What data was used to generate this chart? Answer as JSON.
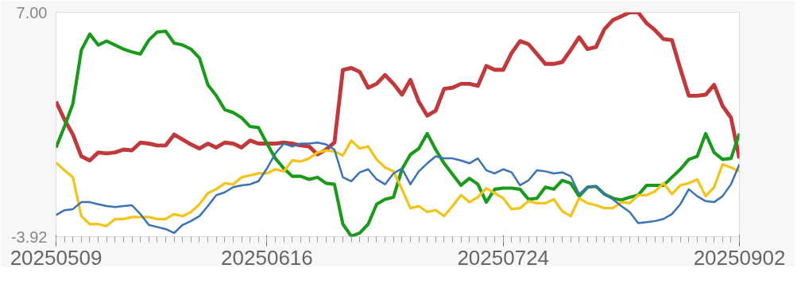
{
  "chart_data": {
    "type": "line",
    "categories": [
      "20250509",
      null,
      null,
      null,
      null,
      null,
      null,
      null,
      null,
      null,
      null,
      null,
      null,
      null,
      null,
      null,
      null,
      null,
      null,
      null,
      null,
      null,
      null,
      null,
      null,
      "20250616",
      null,
      null,
      null,
      null,
      null,
      null,
      null,
      null,
      null,
      null,
      null,
      null,
      null,
      null,
      null,
      null,
      null,
      null,
      null,
      null,
      null,
      null,
      null,
      null,
      null,
      null,
      null,
      "20250724",
      null,
      null,
      null,
      null,
      null,
      null,
      null,
      null,
      null,
      null,
      null,
      null,
      null,
      null,
      null,
      null,
      null,
      null,
      null,
      null,
      null,
      null,
      null,
      null,
      null,
      null,
      null,
      "20250902"
    ],
    "ylim": [
      -3.92,
      7.0
    ],
    "yticks": [
      {
        "value": 7.0,
        "label": "7.00"
      },
      {
        "value": -3.92,
        "label": "-3.92"
      }
    ],
    "series": [
      {
        "color": "#c0393b",
        "values": [
          2.65,
          1.78,
          1.05,
          -0.01,
          -0.21,
          0.18,
          0.13,
          0.18,
          0.32,
          0.28,
          0.66,
          0.61,
          0.52,
          0.52,
          1.05,
          0.81,
          0.57,
          0.37,
          0.61,
          0.42,
          0.66,
          0.61,
          0.42,
          0.76,
          0.61,
          0.61,
          0.61,
          0.66,
          0.61,
          0.52,
          0.47,
          0.08,
          0.32,
          0.66,
          4.2,
          4.29,
          4.1,
          3.33,
          3.52,
          3.95,
          3.52,
          2.99,
          3.71,
          2.65,
          1.97,
          2.21,
          3.28,
          3.33,
          3.52,
          3.52,
          3.42,
          4.39,
          4.2,
          4.2,
          5.02,
          5.6,
          5.45,
          4.97,
          4.49,
          4.49,
          4.58,
          5.16,
          5.79,
          5.21,
          5.31,
          6.18,
          6.62,
          6.81,
          7.0,
          7.0,
          6.47,
          6.13,
          5.7,
          5.65,
          4.25,
          2.94,
          2.94,
          2.99,
          3.47,
          2.45,
          1.87,
          -0.11
        ]
      },
      {
        "color": "#1a9a1a",
        "values": [
          0.42,
          1.44,
          2.55,
          5.16,
          5.94,
          5.41,
          5.6,
          5.41,
          5.21,
          5.07,
          4.97,
          5.65,
          6.04,
          6.08,
          5.5,
          5.41,
          5.21,
          4.78,
          3.47,
          2.94,
          2.26,
          2.12,
          1.87,
          1.44,
          1.39,
          0.61,
          -0.11,
          -0.6,
          -0.98,
          -0.98,
          -1.13,
          -1.03,
          -1.32,
          -1.37,
          -3.31,
          -3.9,
          -3.74,
          -3.31,
          -2.34,
          -2.1,
          -2.0,
          -0.64,
          0.08,
          0.37,
          1.1,
          0.32,
          -0.35,
          -0.89,
          -1.42,
          -1.08,
          -1.37,
          -2.24,
          -1.61,
          -1.56,
          -1.56,
          -1.61,
          -2.1,
          -2.05,
          -1.51,
          -1.61,
          -1.18,
          -1.32,
          -1.95,
          -1.51,
          -1.47,
          -1.85,
          -2.05,
          -2.14,
          -2.0,
          -1.9,
          -1.42,
          -1.42,
          -1.42,
          -1.03,
          -0.64,
          -0.16,
          -0.01,
          1.1,
          0.18,
          -0.16,
          -0.11,
          1.1
        ]
      },
      {
        "color": "#f2c41c",
        "values": [
          -0.31,
          -0.69,
          -1.03,
          -2.92,
          -3.31,
          -3.31,
          -3.4,
          -3.06,
          -3.06,
          -2.97,
          -2.97,
          -2.97,
          -3.06,
          -3.06,
          -2.82,
          -2.92,
          -2.72,
          -2.34,
          -1.8,
          -1.61,
          -1.32,
          -1.37,
          -1.03,
          -0.93,
          -0.84,
          -0.84,
          -0.64,
          -0.74,
          -0.21,
          -0.26,
          -0.11,
          0.18,
          0.28,
          0.23,
          0.03,
          0.76,
          0.37,
          0.47,
          -0.16,
          -0.55,
          -0.74,
          -1.61,
          -2.53,
          -2.43,
          -2.72,
          -2.63,
          -2.92,
          -2.43,
          -1.9,
          -2.24,
          -2.0,
          -1.56,
          -1.8,
          -2.05,
          -2.58,
          -2.53,
          -2.19,
          -2.29,
          -2.29,
          -2.1,
          -2.68,
          -2.92,
          -2.05,
          -2.29,
          -2.39,
          -2.53,
          -2.53,
          -2.24,
          -2.29,
          -1.9,
          -1.9,
          -1.71,
          -1.32,
          -1.85,
          -1.42,
          -1.32,
          -1.13,
          -1.95,
          -1.51,
          -0.4,
          -0.55,
          -0.74
        ]
      },
      {
        "color": "#3a72b4",
        "values": [
          -2.87,
          -2.63,
          -2.58,
          -2.24,
          -2.24,
          -2.34,
          -2.43,
          -2.48,
          -2.43,
          -2.39,
          -2.82,
          -3.35,
          -3.45,
          -3.55,
          -3.74,
          -3.35,
          -3.16,
          -2.92,
          -2.43,
          -1.9,
          -1.76,
          -1.51,
          -1.42,
          -1.37,
          -1.22,
          -0.6,
          0.13,
          0.61,
          0.47,
          0.61,
          0.61,
          0.66,
          0.57,
          0.32,
          -1.03,
          -1.22,
          -0.79,
          -0.64,
          -1.13,
          -1.37,
          -0.84,
          -0.6,
          -1.37,
          -0.74,
          -0.35,
          -0.01,
          -0.11,
          -0.11,
          -0.21,
          -0.35,
          -0.11,
          -0.69,
          -0.84,
          -0.64,
          -0.79,
          -1.42,
          -1.18,
          -0.69,
          -0.74,
          -0.84,
          -0.79,
          -0.98,
          -1.85,
          -1.51,
          -1.47,
          -1.85,
          -2.1,
          -2.43,
          -2.72,
          -3.26,
          -3.21,
          -3.16,
          -3.06,
          -2.82,
          -2.34,
          -1.61,
          -1.95,
          -2.19,
          -2.24,
          -1.95,
          -1.37,
          -0.4
        ]
      }
    ]
  }
}
